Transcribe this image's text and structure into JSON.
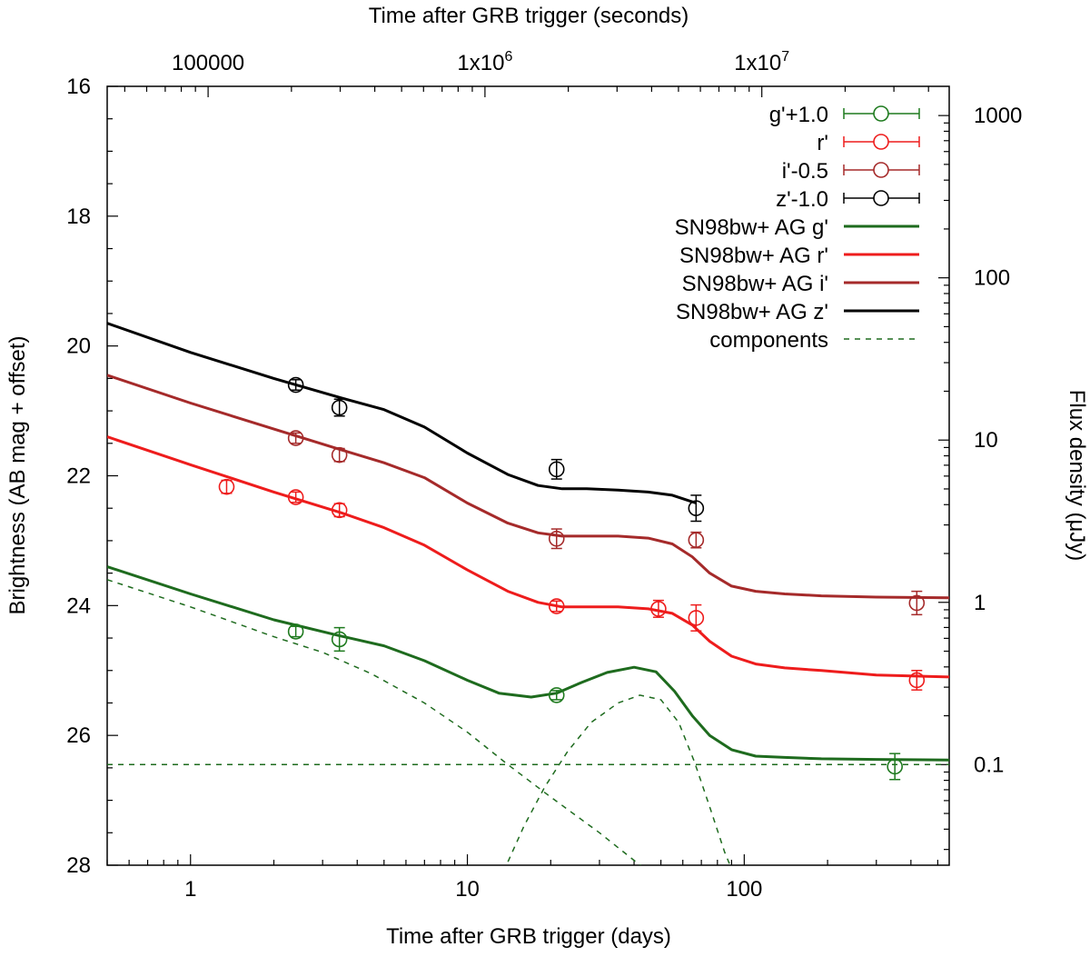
{
  "chart_data": {
    "type": "line",
    "xscale": "log",
    "xlabel": "Time after GRB trigger (days)",
    "x2label": "Time after GRB trigger (seconds)",
    "ylabel": "Brightness (AB mag + offset)",
    "y2label": "Flux density (μJy)",
    "xlim": [
      0.5,
      550
    ],
    "ylim": [
      28,
      16
    ],
    "x_ticks": [
      {
        "value": 1,
        "label": "1"
      },
      {
        "value": 10,
        "label": "10"
      },
      {
        "value": 100,
        "label": "100"
      }
    ],
    "x2_ticks": [
      {
        "value": 100000,
        "label": "100000"
      },
      {
        "value": 1000000,
        "label": "1x10",
        "exp": "6"
      },
      {
        "value": 10000000,
        "label": "1x10",
        "exp": "7"
      }
    ],
    "y_ticks": [
      {
        "value": 16,
        "label": "16"
      },
      {
        "value": 18,
        "label": "18"
      },
      {
        "value": 20,
        "label": "20"
      },
      {
        "value": 22,
        "label": "22"
      },
      {
        "value": 24,
        "label": "24"
      },
      {
        "value": 26,
        "label": "26"
      },
      {
        "value": 28,
        "label": "28"
      }
    ],
    "y2_ticks": [
      {
        "value": 1000,
        "label": "1000"
      },
      {
        "value": 100,
        "label": "100"
      },
      {
        "value": 10,
        "label": "10"
      },
      {
        "value": 1,
        "label": "1"
      },
      {
        "value": 0.1,
        "label": "0.1"
      }
    ],
    "data_series": [
      {
        "name": "g'+1.0",
        "color": "#1e7a1e",
        "points": [
          {
            "x": 2.4,
            "y": 24.4,
            "yerr": 0.08
          },
          {
            "x": 3.45,
            "y": 24.52,
            "yerr": 0.18
          },
          {
            "x": 21.0,
            "y": 25.38,
            "yerr": 0.07
          },
          {
            "x": 350.0,
            "y": 26.48,
            "yerr": 0.2
          }
        ]
      },
      {
        "name": "r'",
        "color": "#ee1c1c",
        "points": [
          {
            "x": 1.35,
            "y": 22.17,
            "yerr": 0.1
          },
          {
            "x": 2.4,
            "y": 22.33,
            "yerr": 0.08
          },
          {
            "x": 3.45,
            "y": 22.53,
            "yerr": 0.1
          },
          {
            "x": 21.0,
            "y": 24.01,
            "yerr": 0.08
          },
          {
            "x": 49.0,
            "y": 24.05,
            "yerr": 0.13
          },
          {
            "x": 67.0,
            "y": 24.19,
            "yerr": 0.2
          },
          {
            "x": 420.0,
            "y": 25.15,
            "yerr": 0.15
          }
        ]
      },
      {
        "name": "i'-0.5",
        "color": "#a52a2a",
        "points": [
          {
            "x": 2.4,
            "y": 21.42,
            "yerr": 0.08
          },
          {
            "x": 3.45,
            "y": 21.68,
            "yerr": 0.1
          },
          {
            "x": 21.0,
            "y": 22.97,
            "yerr": 0.15
          },
          {
            "x": 67.0,
            "y": 22.99,
            "yerr": 0.12
          },
          {
            "x": 420.0,
            "y": 23.96,
            "yerr": 0.18
          }
        ]
      },
      {
        "name": "z'-1.0",
        "color": "#000000",
        "points": [
          {
            "x": 2.4,
            "y": 20.6,
            "yerr": 0.08
          },
          {
            "x": 3.45,
            "y": 20.95,
            "yerr": 0.13
          },
          {
            "x": 21.0,
            "y": 21.9,
            "yerr": 0.15
          },
          {
            "x": 67.0,
            "y": 22.5,
            "yerr": 0.2
          }
        ]
      }
    ],
    "model_series": [
      {
        "name": "SN98bw+ AG g'",
        "color": "#1e6b1e",
        "x": [
          0.5,
          1,
          2,
          3.5,
          5,
          7,
          10,
          13,
          17,
          21,
          26,
          32,
          40,
          48,
          56,
          65,
          75,
          90,
          110,
          140,
          190,
          300,
          550
        ],
        "y": [
          23.4,
          23.82,
          24.22,
          24.47,
          24.62,
          24.85,
          25.15,
          25.35,
          25.41,
          25.35,
          25.18,
          25.03,
          24.95,
          25.02,
          25.32,
          25.7,
          26.0,
          26.22,
          26.32,
          26.34,
          26.36,
          26.37,
          26.38
        ]
      },
      {
        "name": "SN98bw+ AG r'",
        "color": "#ee1c1c",
        "x": [
          0.5,
          1,
          2,
          3.5,
          5,
          7,
          10,
          14,
          18,
          22,
          27,
          35,
          45,
          55,
          65,
          75,
          90,
          110,
          140,
          190,
          300,
          550
        ],
        "y": [
          21.4,
          21.83,
          22.25,
          22.57,
          22.8,
          23.07,
          23.45,
          23.78,
          23.95,
          24.02,
          24.02,
          24.02,
          24.05,
          24.12,
          24.3,
          24.55,
          24.78,
          24.9,
          24.96,
          25.0,
          25.07,
          25.1
        ]
      },
      {
        "name": "SN98bw+ AG i'",
        "color": "#a52a2a",
        "x": [
          0.5,
          1,
          2,
          3.5,
          5,
          7,
          10,
          14,
          18,
          22,
          27,
          35,
          45,
          55,
          65,
          75,
          90,
          110,
          140,
          190,
          300,
          550
        ],
        "y": [
          20.45,
          20.88,
          21.28,
          21.6,
          21.8,
          22.03,
          22.42,
          22.73,
          22.88,
          22.93,
          22.93,
          22.93,
          22.96,
          23.05,
          23.25,
          23.5,
          23.7,
          23.78,
          23.82,
          23.85,
          23.87,
          23.88
        ]
      },
      {
        "name": "SN98bw+ AG z'",
        "color": "#000000",
        "x": [
          0.5,
          1,
          2,
          3.5,
          5,
          7,
          10,
          14,
          18,
          22,
          27,
          35,
          45,
          55,
          67
        ],
        "y": [
          19.65,
          20.1,
          20.5,
          20.8,
          20.98,
          21.25,
          21.65,
          21.98,
          22.15,
          22.2,
          22.2,
          22.22,
          22.25,
          22.3,
          22.42
        ]
      }
    ],
    "components": {
      "name": "components",
      "color": "#1e6b1e",
      "afterglow": {
        "x": [
          0.5,
          1,
          2,
          3,
          4.5,
          7,
          10,
          14,
          20,
          30,
          45
        ],
        "y": [
          23.6,
          24.02,
          24.48,
          24.72,
          25.05,
          25.5,
          25.95,
          26.45,
          26.95,
          27.5,
          28.1
        ]
      },
      "supernova": {
        "x": [
          13.5,
          16,
          19,
          23,
          28,
          35,
          42,
          50,
          58,
          66,
          75,
          85,
          95
        ],
        "y": [
          28.1,
          27.4,
          26.8,
          26.25,
          25.8,
          25.5,
          25.38,
          25.45,
          25.8,
          26.4,
          27.1,
          27.8,
          28.3
        ]
      },
      "host": {
        "x": [
          0.5,
          550
        ],
        "y": [
          26.45,
          26.45
        ]
      }
    }
  }
}
